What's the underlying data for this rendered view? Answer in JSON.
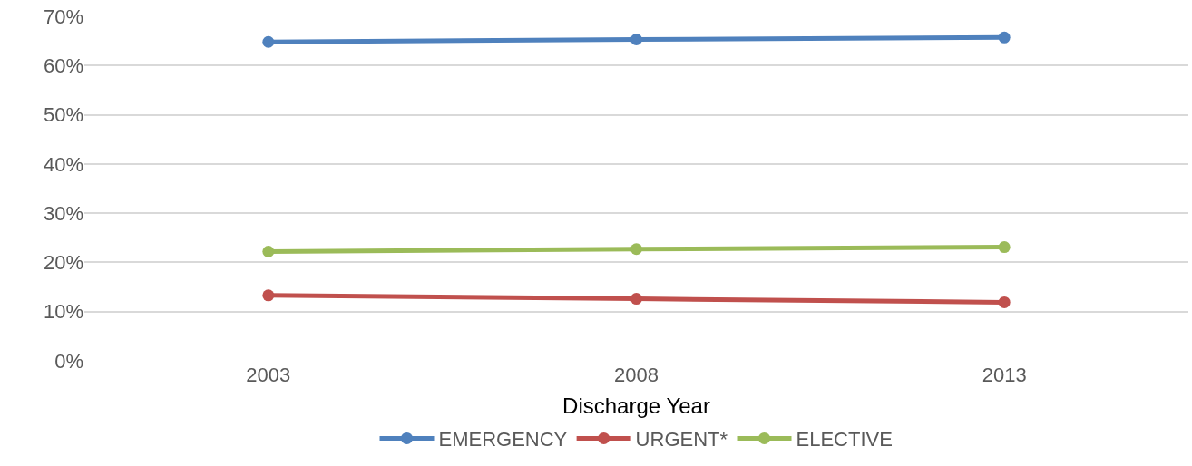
{
  "chart_data": {
    "type": "line",
    "xlabel": "Discharge Year",
    "categories": [
      "2003",
      "2008",
      "2013"
    ],
    "series": [
      {
        "name": "EMERGENCY",
        "color": "#4f81bd",
        "values": [
          64.8,
          65.3,
          65.7
        ]
      },
      {
        "name": "URGENT*",
        "color": "#c0504d",
        "values": [
          13.3,
          12.6,
          11.9
        ]
      },
      {
        "name": "ELECTIVE",
        "color": "#9bbb59",
        "values": [
          22.2,
          22.7,
          23.1
        ]
      }
    ],
    "ylim": [
      0,
      70
    ],
    "yticks": [
      {
        "value": 0,
        "label": "0%"
      },
      {
        "value": 10,
        "label": "10%"
      },
      {
        "value": 20,
        "label": "20%"
      },
      {
        "value": 30,
        "label": "30%"
      },
      {
        "value": 40,
        "label": "40%"
      },
      {
        "value": 50,
        "label": "50%"
      },
      {
        "value": 60,
        "label": "60%"
      },
      {
        "value": 70,
        "label": "70%"
      }
    ],
    "grid": "y",
    "legend": "bottom",
    "marker": "circle",
    "line_style": "solid"
  }
}
